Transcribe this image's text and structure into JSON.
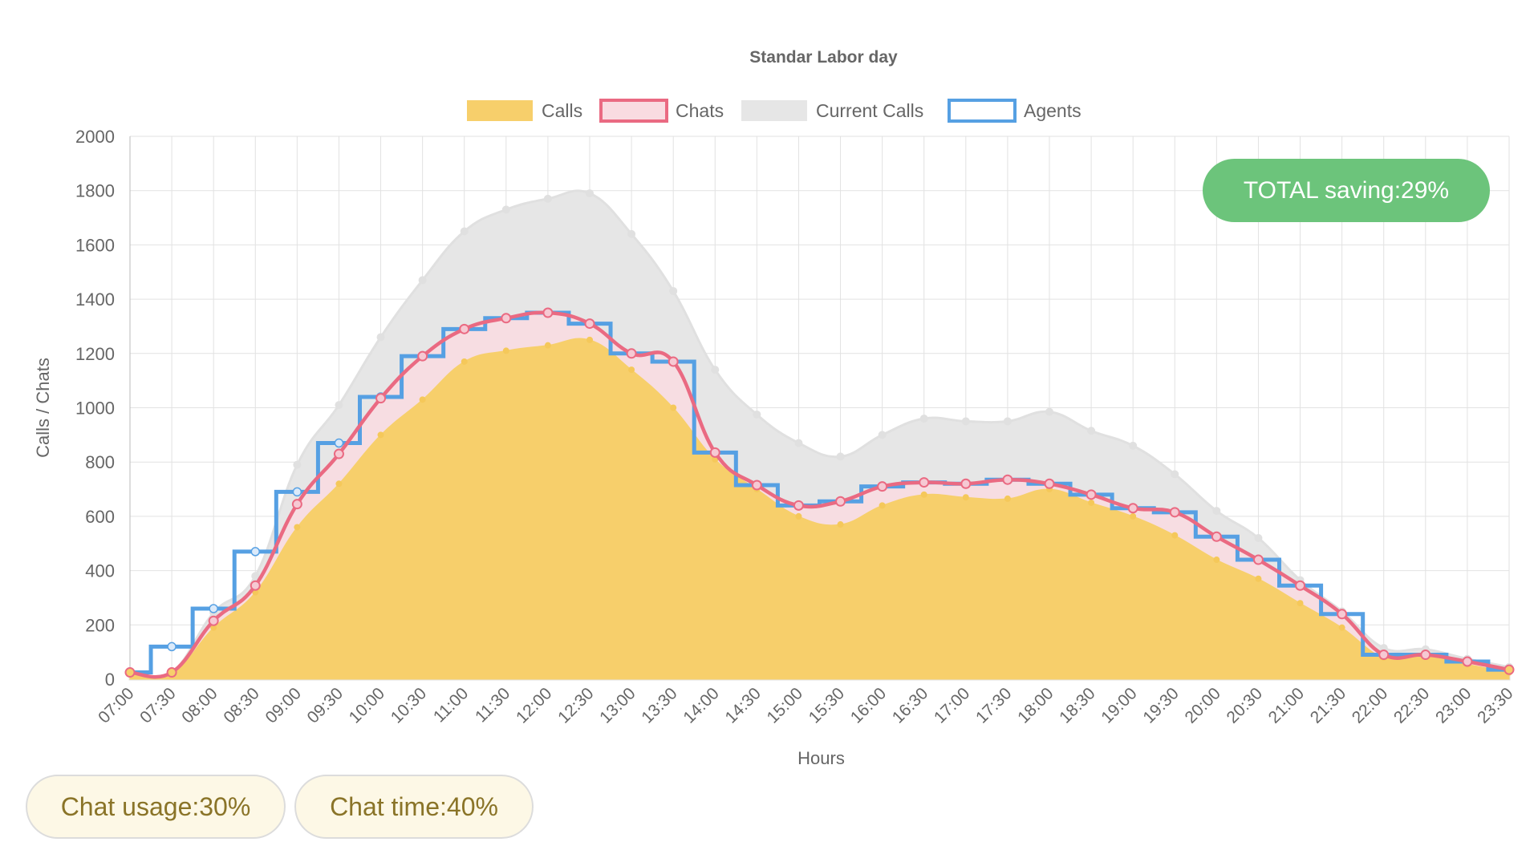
{
  "chart_data": {
    "type": "line",
    "title": "Standar Labor day",
    "xlabel": "Hours",
    "ylabel": "Calls / Chats",
    "ylim": [
      0,
      2000
    ],
    "yticks": [
      0,
      200,
      400,
      600,
      800,
      1000,
      1200,
      1400,
      1600,
      1800,
      2000
    ],
    "grid": true,
    "legend_position": "top",
    "categories": [
      "07:00",
      "07:30",
      "08:00",
      "08:30",
      "09:00",
      "09:30",
      "10:00",
      "10:30",
      "11:00",
      "11:30",
      "12:00",
      "12:30",
      "13:00",
      "13:30",
      "14:00",
      "14:30",
      "15:00",
      "15:30",
      "16:00",
      "16:30",
      "17:00",
      "17:30",
      "18:00",
      "18:30",
      "19:00",
      "19:30",
      "20:00",
      "20:30",
      "21:00",
      "21:30",
      "22:00",
      "22:30",
      "23:00",
      "23:30"
    ],
    "series": [
      {
        "name": "Calls",
        "kind": "area",
        "color": "#f7cf6b",
        "values": [
          20,
          20,
          190,
          320,
          560,
          720,
          900,
          1030,
          1170,
          1210,
          1230,
          1250,
          1140,
          1000,
          810,
          700,
          600,
          570,
          640,
          680,
          670,
          665,
          700,
          650,
          600,
          530,
          440,
          370,
          280,
          190,
          80,
          85,
          55,
          25
        ]
      },
      {
        "name": "Chats",
        "kind": "smooth-line",
        "color": "#ea6a82",
        "fill": "#f9dbe1",
        "values": [
          25,
          25,
          215,
          345,
          645,
          830,
          1035,
          1190,
          1290,
          1330,
          1350,
          1310,
          1200,
          1170,
          835,
          715,
          640,
          655,
          710,
          725,
          720,
          735,
          720,
          680,
          630,
          615,
          525,
          440,
          345,
          240,
          90,
          90,
          65,
          35
        ]
      },
      {
        "name": "Current Calls",
        "kind": "area",
        "color": "#e6e6e6",
        "values": [
          25,
          25,
          245,
          380,
          790,
          1010,
          1260,
          1470,
          1650,
          1730,
          1770,
          1790,
          1640,
          1430,
          1140,
          975,
          870,
          820,
          900,
          960,
          950,
          950,
          985,
          915,
          860,
          755,
          620,
          520,
          365,
          250,
          115,
          110,
          75,
          45
        ]
      },
      {
        "name": "Agents",
        "kind": "stepped-line",
        "color": "#56a0e3",
        "values": [
          25,
          120,
          260,
          470,
          690,
          870,
          1040,
          1190,
          1290,
          1330,
          1350,
          1310,
          1200,
          1170,
          835,
          715,
          640,
          655,
          710,
          725,
          720,
          735,
          720,
          680,
          630,
          615,
          525,
          440,
          345,
          240,
          90,
          90,
          65,
          35
        ]
      }
    ]
  },
  "badges": {
    "total_saving": "TOTAL saving:29%",
    "chat_usage": "Chat usage:30%",
    "chat_time": "Chat time:40%"
  }
}
